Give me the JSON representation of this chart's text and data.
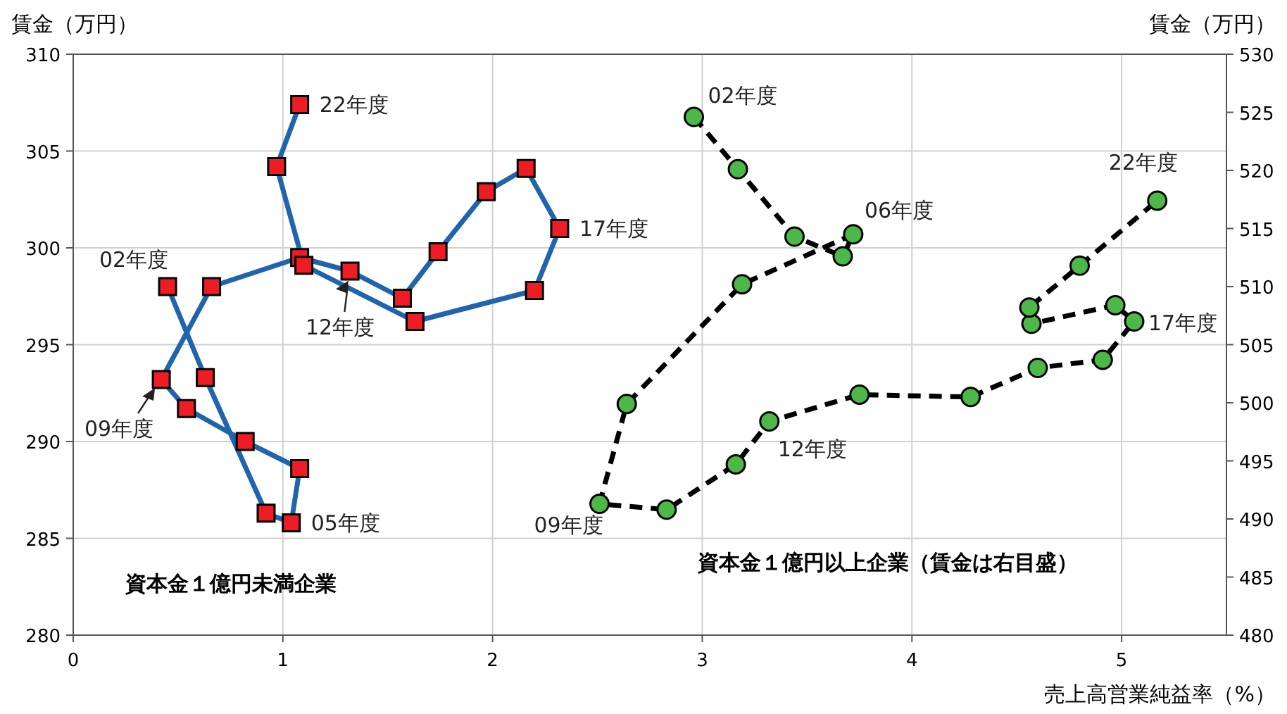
{
  "chart_data": {
    "type": "line",
    "xlabel": "売上高営業純益率（%）",
    "ylabel": "賃金（万円）",
    "y2label": "賃金（万円）",
    "xlim": [
      0,
      5.5
    ],
    "xticks": [
      0,
      1,
      2,
      3,
      4,
      5
    ],
    "ylim": [
      280,
      310
    ],
    "yticks": [
      280,
      285,
      290,
      295,
      300,
      305,
      310
    ],
    "y2lim": [
      480,
      530
    ],
    "y2ticks": [
      480,
      485,
      490,
      495,
      500,
      505,
      510,
      515,
      520,
      525,
      530
    ],
    "grid": true,
    "series": [
      {
        "name": "資本金１億円未満企業",
        "color": "#1f64ad",
        "marker": "square",
        "line_style": "solid",
        "x": [
          0.45,
          0.63,
          0.92,
          1.04,
          1.08,
          0.82,
          0.54,
          0.42,
          0.66,
          1.08,
          1.32,
          1.57,
          1.74,
          1.97,
          2.16,
          2.32,
          2.2,
          1.63,
          1.1,
          0.97,
          1.08
        ],
        "values": [
          298.0,
          293.3,
          286.3,
          285.8,
          288.6,
          290.0,
          291.7,
          293.2,
          298.0,
          299.5,
          298.8,
          297.4,
          299.8,
          302.9,
          304.1,
          301.0,
          297.8,
          296.2,
          299.1,
          304.2,
          307.4
        ]
      },
      {
        "name": "資本金１億円以上企業（賃金は右目盛）",
        "color": "#000000",
        "marker": "circle",
        "line_style": "dashed",
        "axis": "y2",
        "x": [
          2.96,
          3.17,
          3.44,
          3.67,
          3.72,
          3.19,
          2.64,
          2.51,
          2.83,
          3.16,
          3.32,
          3.75,
          4.28,
          4.6,
          4.91,
          5.06,
          4.97,
          4.57,
          4.56,
          4.8,
          5.17
        ],
        "values": [
          524.6,
          520.1,
          514.3,
          512.6,
          514.5,
          510.2,
          499.9,
          491.3,
          490.8,
          494.7,
          498.4,
          500.7,
          500.5,
          503.0,
          503.7,
          507.0,
          508.4,
          506.8,
          508.2,
          511.8,
          517.4
        ]
      }
    ],
    "annotations": [
      {
        "text": "02年度",
        "x": 0.45,
        "y": 298.0
      },
      {
        "text": "05年度",
        "x": 1.04,
        "y": 285.8
      },
      {
        "text": "09年度",
        "x": 0.42,
        "y": 293.2
      },
      {
        "text": "12年度",
        "x": 1.32,
        "y": 298.8
      },
      {
        "text": "17年度",
        "x": 2.32,
        "y": 301.0
      },
      {
        "text": "22年度",
        "x": 1.08,
        "y": 307.4
      },
      "02年度",
      "06年度",
      "09年度",
      "12年度",
      "17年度",
      "22年度"
    ]
  }
}
